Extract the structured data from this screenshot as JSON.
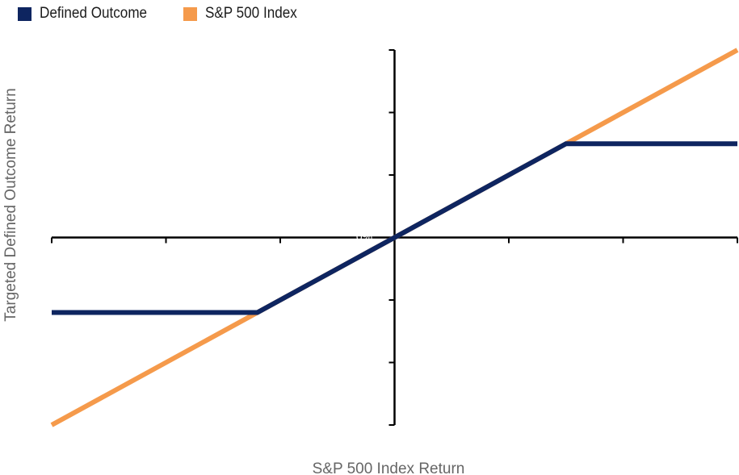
{
  "chart_data": {
    "type": "line",
    "title": "",
    "xlabel": "S&P 500 Index Return",
    "ylabel": "Targeted Defined Outcome Return",
    "origin_label": "0%",
    "xlim": [
      -3,
      3
    ],
    "ylim": [
      -3,
      3
    ],
    "x_ticks": [
      -3,
      -2,
      -1,
      0,
      1,
      2,
      3
    ],
    "y_ticks": [
      -3,
      -2,
      -1,
      0,
      1,
      2,
      3
    ],
    "grid": false,
    "legend_position": "top-left",
    "series": [
      {
        "name": "S&P 500 Index",
        "color": "#F59A4B",
        "x": [
          -3,
          3
        ],
        "y": [
          -3,
          3
        ]
      },
      {
        "name": "Defined Outcome",
        "color": "#0E2560",
        "x": [
          -3,
          -1.2,
          1.5,
          3
        ],
        "y": [
          -1.2,
          -1.2,
          1.5,
          1.5
        ]
      }
    ]
  }
}
